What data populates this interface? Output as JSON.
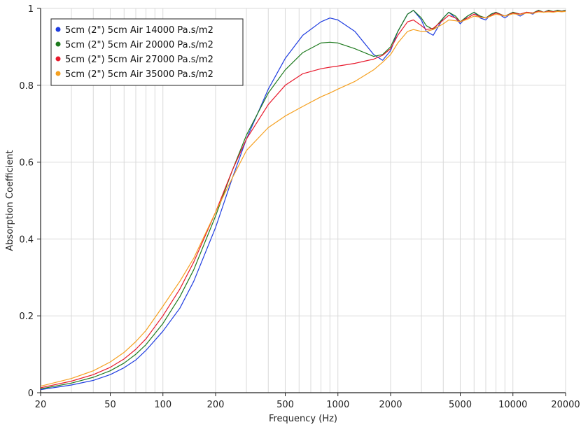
{
  "chart_data": {
    "type": "line",
    "title": "",
    "xlabel": "Frequency (Hz)",
    "ylabel": "Absorption Coefficient",
    "x_scale": "log",
    "xlim": [
      20,
      20000
    ],
    "ylim": [
      0,
      1
    ],
    "grid": true,
    "legend_position": "top-left",
    "x_ticks": [
      {
        "value": 20,
        "label": "20"
      },
      {
        "value": 50,
        "label": "50"
      },
      {
        "value": 100,
        "label": "100"
      },
      {
        "value": 200,
        "label": "200"
      },
      {
        "value": 500,
        "label": "500"
      },
      {
        "value": 1000,
        "label": "1000"
      },
      {
        "value": 2000,
        "label": "2000"
      },
      {
        "value": 5000,
        "label": "5000"
      },
      {
        "value": 10000,
        "label": "10000"
      },
      {
        "value": 20000,
        "label": "20000"
      }
    ],
    "y_ticks": [
      {
        "value": 0,
        "label": "0"
      },
      {
        "value": 0.2,
        "label": "0.2"
      },
      {
        "value": 0.4,
        "label": "0.4"
      },
      {
        "value": 0.6,
        "label": "0.6"
      },
      {
        "value": 0.8,
        "label": "0.8"
      },
      {
        "value": 1,
        "label": "1"
      }
    ],
    "series": [
      {
        "name": "5cm (2\") 5cm Air 14000 Pa.s/m2",
        "color": "#1f3de0",
        "x": [
          20,
          30,
          40,
          50,
          60,
          70,
          80,
          100,
          125,
          150,
          200,
          250,
          300,
          400,
          500,
          630,
          800,
          900,
          1000,
          1250,
          1600,
          1800,
          2000,
          2200,
          2500,
          2700,
          3000,
          3200,
          3500,
          4000,
          4300,
          4700,
          5000,
          5500,
          6000,
          6500,
          7000,
          7500,
          8000,
          9000,
          10000,
          11000,
          12000,
          13000,
          14000,
          15000,
          16000,
          17000,
          18000,
          19000,
          20000
        ],
        "y": [
          0.008,
          0.02,
          0.032,
          0.047,
          0.065,
          0.085,
          0.11,
          0.16,
          0.22,
          0.29,
          0.43,
          0.56,
          0.66,
          0.79,
          0.87,
          0.93,
          0.965,
          0.975,
          0.97,
          0.94,
          0.88,
          0.865,
          0.89,
          0.94,
          0.985,
          0.995,
          0.97,
          0.94,
          0.93,
          0.975,
          0.99,
          0.975,
          0.96,
          0.98,
          0.99,
          0.975,
          0.97,
          0.985,
          0.99,
          0.975,
          0.99,
          0.98,
          0.99,
          0.985,
          0.995,
          0.99,
          0.995,
          0.99,
          0.995,
          0.993,
          0.995
        ]
      },
      {
        "name": "5cm (2\") 5cm Air 20000 Pa.s/m2",
        "color": "#1e7a1e",
        "x": [
          20,
          30,
          40,
          50,
          60,
          70,
          80,
          100,
          125,
          150,
          200,
          250,
          300,
          400,
          500,
          630,
          800,
          900,
          1000,
          1250,
          1600,
          1800,
          2000,
          2200,
          2500,
          2700,
          3000,
          3200,
          3500,
          4000,
          4300,
          4700,
          5000,
          5500,
          6000,
          6500,
          7000,
          7500,
          8000,
          9000,
          10000,
          11000,
          12000,
          13000,
          14000,
          15000,
          16000,
          17000,
          18000,
          19000,
          20000
        ],
        "y": [
          0.01,
          0.025,
          0.04,
          0.057,
          0.077,
          0.1,
          0.125,
          0.18,
          0.25,
          0.32,
          0.46,
          0.58,
          0.67,
          0.78,
          0.84,
          0.885,
          0.91,
          0.912,
          0.91,
          0.895,
          0.875,
          0.88,
          0.9,
          0.94,
          0.985,
          0.995,
          0.975,
          0.955,
          0.945,
          0.975,
          0.99,
          0.98,
          0.965,
          0.98,
          0.99,
          0.98,
          0.975,
          0.985,
          0.99,
          0.98,
          0.99,
          0.985,
          0.99,
          0.988,
          0.995,
          0.99,
          0.995,
          0.992,
          0.995,
          0.993,
          0.995
        ]
      },
      {
        "name": "5cm (2\") 5cm Air 27000 Pa.s/m2",
        "color": "#e8192c",
        "x": [
          20,
          30,
          40,
          50,
          60,
          70,
          80,
          100,
          125,
          150,
          200,
          250,
          300,
          400,
          500,
          630,
          800,
          900,
          1000,
          1250,
          1600,
          1800,
          2000,
          2200,
          2500,
          2700,
          3000,
          3200,
          3500,
          4000,
          4300,
          4700,
          5000,
          5500,
          6000,
          6500,
          7000,
          7500,
          8000,
          9000,
          10000,
          11000,
          12000,
          13000,
          14000,
          15000,
          16000,
          17000,
          18000,
          19000,
          20000
        ],
        "y": [
          0.013,
          0.03,
          0.047,
          0.066,
          0.088,
          0.113,
          0.14,
          0.2,
          0.27,
          0.34,
          0.47,
          0.58,
          0.66,
          0.75,
          0.8,
          0.83,
          0.843,
          0.847,
          0.85,
          0.857,
          0.868,
          0.878,
          0.895,
          0.93,
          0.965,
          0.97,
          0.955,
          0.945,
          0.948,
          0.97,
          0.982,
          0.975,
          0.965,
          0.975,
          0.985,
          0.978,
          0.975,
          0.982,
          0.988,
          0.98,
          0.988,
          0.985,
          0.99,
          0.988,
          0.993,
          0.99,
          0.993,
          0.991,
          0.993,
          0.992,
          0.993
        ]
      },
      {
        "name": "5cm (2\") 5cm Air 35000 Pa.s/m2",
        "color": "#f5a020",
        "x": [
          20,
          30,
          40,
          50,
          60,
          70,
          80,
          100,
          125,
          150,
          200,
          250,
          300,
          400,
          500,
          630,
          800,
          900,
          1000,
          1250,
          1600,
          1800,
          2000,
          2200,
          2500,
          2700,
          3000,
          3200,
          3500,
          4000,
          4300,
          4700,
          5000,
          5500,
          6000,
          6500,
          7000,
          7500,
          8000,
          9000,
          10000,
          11000,
          12000,
          13000,
          14000,
          15000,
          16000,
          17000,
          18000,
          19000,
          20000
        ],
        "y": [
          0.017,
          0.037,
          0.057,
          0.08,
          0.105,
          0.133,
          0.162,
          0.225,
          0.29,
          0.35,
          0.47,
          0.56,
          0.63,
          0.69,
          0.72,
          0.745,
          0.77,
          0.78,
          0.79,
          0.81,
          0.84,
          0.86,
          0.88,
          0.91,
          0.94,
          0.945,
          0.94,
          0.94,
          0.945,
          0.96,
          0.97,
          0.968,
          0.965,
          0.972,
          0.98,
          0.977,
          0.975,
          0.98,
          0.985,
          0.98,
          0.986,
          0.984,
          0.988,
          0.987,
          0.991,
          0.99,
          0.991,
          0.99,
          0.992,
          0.991,
          0.992
        ]
      }
    ]
  }
}
